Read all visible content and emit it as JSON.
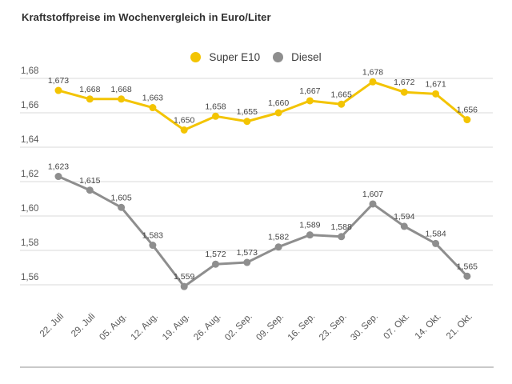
{
  "title": "Kraftstoffpreise im Wochenvergleich in Euro/Liter",
  "legend": {
    "items": [
      {
        "label": "Super E10",
        "color": "#f3c402"
      },
      {
        "label": "Diesel",
        "color": "#8e8e8e"
      }
    ]
  },
  "chart_data": {
    "type": "line",
    "title": "Kraftstoffpreise im Wochenvergleich in Euro/Liter",
    "xlabel": "",
    "ylabel": "Euro/Liter",
    "categories": [
      "22. Juli",
      "29. Juli",
      "05. Aug.",
      "12. Aug.",
      "19. Aug.",
      "26. Aug.",
      "02. Sep.",
      "09. Sep.",
      "16. Sep.",
      "23. Sep.",
      "30. Sep.",
      "07. Okt.",
      "14. Okt.",
      "21. Okt."
    ],
    "series": [
      {
        "name": "Super E10",
        "color": "#f3c402",
        "values": [
          1.673,
          1.668,
          1.668,
          1.663,
          1.65,
          1.658,
          1.655,
          1.66,
          1.667,
          1.665,
          1.678,
          1.672,
          1.671,
          1.656
        ]
      },
      {
        "name": "Diesel",
        "color": "#8e8e8e",
        "values": [
          1.623,
          1.615,
          1.605,
          1.583,
          1.559,
          1.572,
          1.573,
          1.582,
          1.589,
          1.588,
          1.607,
          1.594,
          1.584,
          1.565
        ]
      }
    ],
    "yticks": [
      1.68,
      1.66,
      1.64,
      1.62,
      1.6,
      1.58,
      1.56
    ],
    "ylim": [
      1.55,
      1.69
    ],
    "grid": true,
    "legend_position": "top-center",
    "decimal_separator": ",",
    "data_labels": true
  },
  "colors": {
    "grid_line": "#d8d8d8",
    "axis_text": "#575757",
    "data_label_text": "#454545",
    "title_text": "#2f2f2f",
    "bottom_rule": "#c9c9c9"
  }
}
